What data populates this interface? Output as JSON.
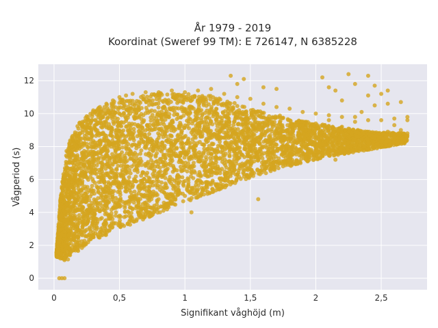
{
  "chart_data": {
    "type": "scatter",
    "title_line1": "År 1979 - 2019",
    "title_line2": "Koordinat (Sweref 99 TM): E 726147, N 6385228",
    "xlabel": "Signifikant våghöjd (m)",
    "ylabel": "Vågperiod (s)",
    "xlim": [
      -0.12,
      2.85
    ],
    "ylim": [
      -0.7,
      13.0
    ],
    "xticks": [
      0,
      0.5,
      1,
      1.5,
      2,
      2.5
    ],
    "xtick_labels": [
      "0",
      "0,5",
      "1",
      "1,5",
      "2",
      "2,5"
    ],
    "yticks": [
      0,
      2,
      4,
      6,
      8,
      10,
      12
    ],
    "ytick_labels": [
      "0",
      "2",
      "4",
      "6",
      "8",
      "10",
      "12"
    ],
    "grid": true,
    "series_color": "#d4a51f",
    "plot_background": "#e6e6ef",
    "points": [
      [
        0.04,
        0.0
      ],
      [
        0.06,
        0.0
      ],
      [
        0.08,
        0.0
      ],
      [
        0.03,
        1.6
      ],
      [
        0.05,
        1.2
      ],
      [
        0.08,
        1.1
      ],
      [
        0.1,
        1.4
      ],
      [
        0.04,
        2.2
      ],
      [
        0.06,
        3.0
      ],
      [
        0.08,
        4.0
      ],
      [
        0.1,
        5.2
      ],
      [
        0.12,
        6.2
      ],
      [
        0.14,
        7.0
      ],
      [
        0.16,
        7.8
      ],
      [
        0.18,
        8.6
      ],
      [
        0.22,
        9.3
      ],
      [
        0.26,
        9.8
      ],
      [
        0.3,
        10.2
      ],
      [
        0.35,
        10.4
      ],
      [
        0.4,
        10.6
      ],
      [
        0.45,
        10.8
      ],
      [
        0.5,
        11.0
      ],
      [
        0.55,
        11.1
      ],
      [
        0.6,
        11.2
      ],
      [
        0.7,
        11.3
      ],
      [
        0.8,
        11.3
      ],
      [
        0.9,
        11.4
      ],
      [
        1.0,
        11.3
      ],
      [
        1.1,
        11.4
      ],
      [
        1.2,
        11.5
      ],
      [
        1.3,
        11.2
      ],
      [
        1.4,
        11.0
      ],
      [
        1.5,
        10.9
      ],
      [
        1.6,
        10.6
      ],
      [
        1.7,
        10.4
      ],
      [
        1.8,
        10.3
      ],
      [
        1.9,
        10.1
      ],
      [
        2.0,
        10.0
      ],
      [
        2.1,
        9.9
      ],
      [
        2.2,
        9.8
      ],
      [
        2.3,
        9.8
      ],
      [
        2.4,
        9.6
      ],
      [
        2.5,
        9.6
      ],
      [
        2.6,
        9.7
      ],
      [
        2.7,
        9.6
      ],
      [
        0.15,
        1.7
      ],
      [
        0.2,
        2.0
      ],
      [
        0.3,
        2.5
      ],
      [
        0.4,
        2.9
      ],
      [
        0.5,
        3.2
      ],
      [
        0.6,
        3.6
      ],
      [
        0.7,
        3.9
      ],
      [
        0.8,
        4.3
      ],
      [
        0.9,
        4.7
      ],
      [
        1.0,
        5.0
      ],
      [
        1.1,
        5.4
      ],
      [
        1.2,
        5.7
      ],
      [
        1.3,
        6.0
      ],
      [
        1.4,
        6.3
      ],
      [
        1.5,
        6.6
      ],
      [
        1.6,
        6.9
      ],
      [
        1.7,
        7.1
      ],
      [
        1.8,
        7.4
      ],
      [
        1.9,
        7.6
      ],
      [
        2.0,
        7.8
      ],
      [
        2.1,
        7.9
      ],
      [
        2.2,
        8.0
      ],
      [
        2.3,
        8.1
      ],
      [
        2.4,
        8.2
      ],
      [
        2.5,
        8.3
      ],
      [
        2.6,
        8.6
      ],
      [
        1.56,
        4.8
      ],
      [
        1.35,
        12.3
      ],
      [
        1.45,
        12.1
      ],
      [
        1.4,
        11.8
      ],
      [
        1.6,
        11.6
      ],
      [
        1.7,
        11.5
      ],
      [
        2.05,
        12.2
      ],
      [
        2.1,
        11.6
      ],
      [
        2.15,
        11.4
      ],
      [
        2.25,
        12.4
      ],
      [
        2.3,
        11.8
      ],
      [
        2.4,
        12.3
      ],
      [
        2.45,
        11.7
      ],
      [
        2.5,
        11.2
      ],
      [
        2.55,
        11.4
      ],
      [
        2.4,
        11.1
      ],
      [
        2.2,
        10.8
      ],
      [
        2.55,
        10.6
      ],
      [
        2.65,
        10.7
      ],
      [
        2.7,
        9.8
      ],
      [
        2.35,
        10.1
      ],
      [
        2.45,
        10.5
      ],
      [
        2.6,
        9.3
      ],
      [
        2.65,
        9.0
      ],
      [
        2.55,
        8.9
      ],
      [
        2.5,
        8.1
      ],
      [
        2.45,
        8.5
      ],
      [
        2.35,
        8.4
      ],
      [
        2.25,
        7.6
      ],
      [
        2.15,
        7.2
      ],
      [
        2.05,
        7.6
      ],
      [
        1.95,
        7.2
      ],
      [
        1.85,
        7.0
      ],
      [
        1.75,
        6.8
      ],
      [
        2.0,
        9.4
      ],
      [
        1.9,
        9.1
      ],
      [
        2.1,
        9.6
      ],
      [
        2.2,
        9.2
      ],
      [
        2.3,
        9.5
      ],
      [
        0.6,
        4.2
      ],
      [
        0.7,
        4.5
      ],
      [
        0.9,
        5.1
      ],
      [
        1.05,
        4.0
      ],
      [
        1.2,
        6.5
      ],
      [
        1.35,
        7.0
      ]
    ]
  }
}
